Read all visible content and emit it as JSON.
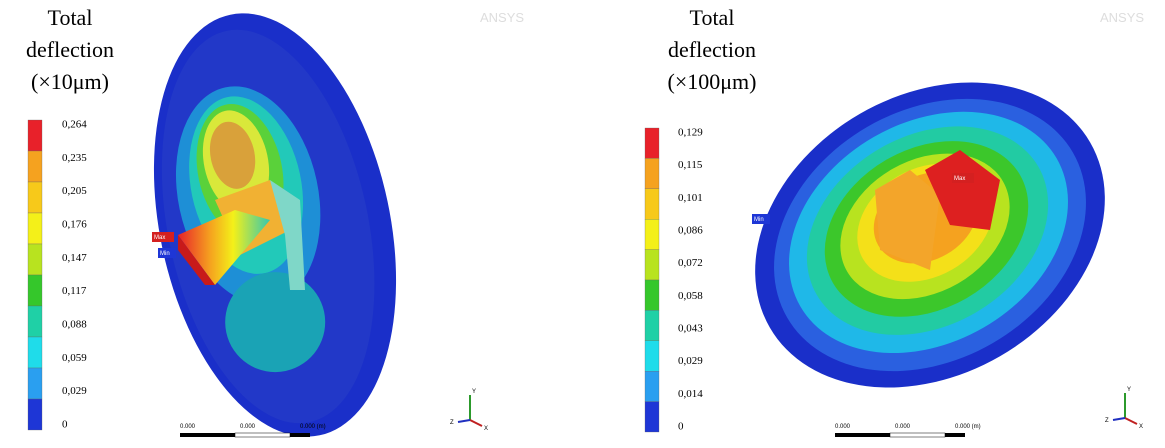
{
  "colors": [
    "#e8212a",
    "#f5a21f",
    "#f7c91a",
    "#f4f019",
    "#b8e31f",
    "#35c72b",
    "#1fd0a6",
    "#1fdcea",
    "#2a9ff0",
    "#1e36d6"
  ],
  "panels": [
    {
      "title_lines": [
        "Total",
        "deflection",
        "(×10μm)"
      ],
      "legend": [
        "0,264",
        "0,235",
        "0,205",
        "0,176",
        "0,147",
        "0,117",
        "0,088",
        "0,059",
        "0,029",
        "0"
      ],
      "watermark": "ANSYS",
      "max_label": "Max",
      "min_label": "Min",
      "scale": [
        "0.000",
        "0.000",
        "0.000 (m)"
      ],
      "axes": [
        "X",
        "Y",
        "Z"
      ]
    },
    {
      "title_lines": [
        "Total",
        "deflection",
        "(×100μm)"
      ],
      "legend": [
        "0,129",
        "0,115",
        "0,101",
        "0,086",
        "0,072",
        "0,058",
        "0,043",
        "0,029",
        "0,014",
        "0"
      ],
      "watermark": "ANSYS",
      "max_label": "Max",
      "min_label": "Min",
      "scale": [
        "0.000",
        "0.000",
        "0.000 (m)"
      ],
      "axes": [
        "X",
        "Y",
        "Z"
      ]
    }
  ]
}
